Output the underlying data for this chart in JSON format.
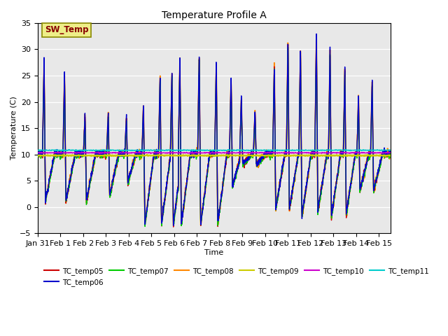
{
  "title": "Temperature Profile A",
  "xlabel": "Time",
  "ylabel": "Temperature (C)",
  "ylim": [
    -5,
    35
  ],
  "xlim": [
    0,
    15.5
  ],
  "xtick_labels": [
    "Jan 31",
    "Feb 1",
    "Feb 2",
    "Feb 3",
    "Feb 4",
    "Feb 5",
    "Feb 6",
    "Feb 7",
    "Feb 8",
    "Feb 9",
    "Feb 10",
    "Feb 11",
    "Feb 12",
    "Feb 13",
    "Feb 14",
    "Feb 15"
  ],
  "xtick_positions": [
    0,
    1,
    2,
    3,
    4,
    5,
    6,
    7,
    8,
    9,
    10,
    11,
    12,
    13,
    14,
    15
  ],
  "series_colors": {
    "TC_temp05": "#cc0000",
    "TC_temp06": "#0000cc",
    "TC_temp07": "#00cc00",
    "TC_temp08": "#ff8800",
    "TC_temp09": "#cccc00",
    "TC_temp10": "#cc00cc",
    "TC_temp11": "#00cccc"
  },
  "SW_Temp_box_facecolor": "#eeee88",
  "SW_Temp_box_edgecolor": "#888800",
  "SW_Temp_text_color": "#880000",
  "background_color": "#e8e8e8",
  "grid_color": "white",
  "yticks": [
    -5,
    0,
    5,
    10,
    15,
    20,
    25,
    30,
    35
  ],
  "figsize": [
    6.4,
    4.8
  ],
  "dpi": 100,
  "spike_events": [
    {
      "day": 0.28,
      "height": 27.5,
      "drop": 1.0,
      "recover": 0.4
    },
    {
      "day": 1.18,
      "height": 25.5,
      "drop": 1.0,
      "recover": 0.4
    },
    {
      "day": 2.08,
      "height": 17.5,
      "drop": 1.0,
      "recover": 0.4
    },
    {
      "day": 3.1,
      "height": 17.5,
      "drop": 2.0,
      "recover": 0.4
    },
    {
      "day": 3.9,
      "height": 17.0,
      "drop": 4.5,
      "recover": 0.35
    },
    {
      "day": 4.65,
      "height": 19.5,
      "drop": -3.5,
      "recover": 0.4
    },
    {
      "day": 5.38,
      "height": 25.0,
      "drop": -3.5,
      "recover": 0.4
    },
    {
      "day": 5.9,
      "height": 25.5,
      "drop": -3.5,
      "recover": 0.4
    },
    {
      "day": 6.25,
      "height": 28.0,
      "drop": -3.5,
      "recover": 0.4
    },
    {
      "day": 7.1,
      "height": 29.5,
      "drop": -3.5,
      "recover": 0.4
    },
    {
      "day": 7.85,
      "height": 27.5,
      "drop": -3.5,
      "recover": 0.4
    },
    {
      "day": 8.5,
      "height": 24.5,
      "drop": 4.0,
      "recover": 0.4
    },
    {
      "day": 8.95,
      "height": 20.5,
      "drop": 8.0,
      "recover": 0.4
    },
    {
      "day": 9.55,
      "height": 18.0,
      "drop": 8.0,
      "recover": 0.4
    },
    {
      "day": 10.4,
      "height": 27.0,
      "drop": -0.5,
      "recover": 0.4
    },
    {
      "day": 11.0,
      "height": 32.0,
      "drop": -0.5,
      "recover": 0.4
    },
    {
      "day": 11.55,
      "height": 30.5,
      "drop": -2.0,
      "recover": 0.4
    },
    {
      "day": 12.25,
      "height": 33.0,
      "drop": -1.0,
      "recover": 0.4
    },
    {
      "day": 12.85,
      "height": 30.0,
      "drop": -2.0,
      "recover": 0.4
    },
    {
      "day": 13.5,
      "height": 26.0,
      "drop": -1.5,
      "recover": 0.4
    },
    {
      "day": 14.1,
      "height": 21.0,
      "drop": 3.0,
      "recover": 0.4
    },
    {
      "day": 14.7,
      "height": 24.0,
      "drop": 3.0,
      "recover": 0.4
    }
  ]
}
